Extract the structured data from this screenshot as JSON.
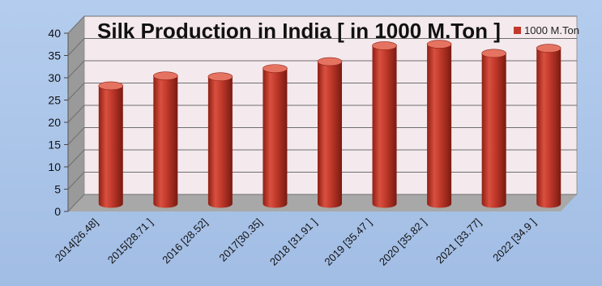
{
  "chart_data": {
    "type": "bar",
    "title": "Silk Production in India [ in 1000 M.Ton ]",
    "categories": [
      "2014[26.48]",
      "2015[28.71 ]",
      "2016 [28.52]",
      "2017[30.35]",
      "2018 [31.91 ]",
      "2019 [35.47 ]",
      "2020 [35.82 ]",
      "2021 [33.77]",
      "2022 [34.9 ]"
    ],
    "series": [
      {
        "name": "1000 M.Ton",
        "values": [
          26.48,
          28.71,
          28.52,
          30.35,
          31.91,
          35.47,
          35.82,
          33.77,
          34.9
        ]
      }
    ],
    "ylim": [
      0,
      40
    ],
    "yticks": [
      "0",
      "5",
      "10",
      "15",
      "20",
      "25",
      "30",
      "35",
      "40"
    ],
    "grid": true,
    "legend_position": "top-right",
    "style": "3d-cylinder",
    "colors": {
      "bar": "#c0392b",
      "bar_light": "#e57361",
      "bar_dark": "#8e1f14",
      "back_wall": "#f4e9ec",
      "side_wall": "#9a9a9a",
      "floor": "#a8a8a8",
      "gridline": "#6f6f6f"
    }
  }
}
